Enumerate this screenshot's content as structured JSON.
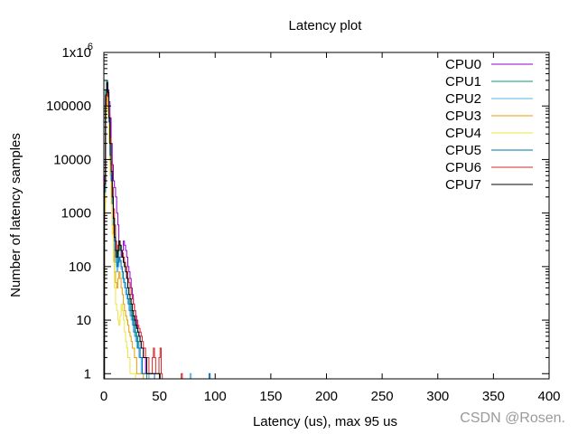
{
  "chart_data": {
    "type": "line",
    "title": "Latency plot",
    "xlabel": "Latency (us), max 95 us",
    "ylabel": "Number of latency samples",
    "xlim": [
      0,
      400
    ],
    "ylim": [
      0.8,
      1000000
    ],
    "yscale": "log",
    "grid": false,
    "legend_position": "top-right",
    "x_ticks": [
      0,
      50,
      100,
      150,
      200,
      250,
      300,
      350,
      400
    ],
    "x_tick_labels": [
      "0",
      "50",
      "100",
      "150",
      "200",
      "250",
      "300",
      "350",
      "400"
    ],
    "y_ticks": [
      1,
      10,
      100,
      1000,
      10000,
      100000,
      1000000
    ],
    "y_tick_labels": [
      "1",
      "10",
      "100",
      "1000",
      "10000",
      "100000",
      "1x10"
    ],
    "y_top_exponent": "6",
    "series": [
      {
        "name": "CPU0",
        "color": "#9400d3",
        "x": [
          1,
          2,
          3,
          4,
          5,
          6,
          7,
          8,
          9,
          10,
          11,
          12,
          13,
          14,
          15,
          16,
          17,
          18,
          19,
          20,
          21,
          22,
          23,
          24,
          25,
          26,
          27,
          28,
          29,
          30,
          31,
          32,
          33,
          34,
          35,
          36,
          37,
          38,
          39,
          40
        ],
        "y": [
          5000,
          150000,
          250000,
          200000,
          120000,
          60000,
          20000,
          8000,
          4000,
          3000,
          2000,
          1000,
          600,
          300,
          200,
          150,
          200,
          300,
          250,
          200,
          150,
          100,
          80,
          60,
          40,
          30,
          20,
          15,
          10,
          8,
          6,
          5,
          4,
          3,
          3,
          2,
          2,
          1,
          1,
          1
        ]
      },
      {
        "name": "CPU1",
        "color": "#009e73",
        "x": [
          1,
          2,
          3,
          4,
          5,
          6,
          7,
          8,
          9,
          10,
          11,
          12,
          13,
          14,
          15,
          16,
          17,
          18,
          19,
          20,
          21,
          22,
          23,
          24,
          25,
          26,
          27,
          28,
          29,
          30,
          31,
          32,
          33,
          34,
          35,
          36,
          37,
          38
        ],
        "y": [
          3000,
          200000,
          300000,
          150000,
          60000,
          15000,
          5000,
          2000,
          800,
          400,
          200,
          150,
          100,
          200,
          250,
          200,
          150,
          120,
          100,
          80,
          60,
          40,
          30,
          20,
          15,
          12,
          10,
          8,
          6,
          5,
          4,
          3,
          2,
          2,
          1,
          1,
          1,
          1
        ]
      },
      {
        "name": "CPU2",
        "color": "#56b4e9",
        "x": [
          1,
          2,
          3,
          4,
          5,
          6,
          7,
          8,
          9,
          10,
          11,
          12,
          13,
          14,
          15,
          16,
          17,
          18,
          19,
          20,
          21,
          22,
          23,
          24,
          25,
          26,
          27,
          28,
          29,
          30,
          31,
          32,
          33,
          34,
          35,
          36,
          37,
          38,
          39,
          40,
          78
        ],
        "y": [
          2000,
          120000,
          220000,
          120000,
          40000,
          10000,
          3000,
          1000,
          400,
          200,
          120,
          80,
          100,
          150,
          120,
          90,
          60,
          50,
          40,
          30,
          25,
          20,
          15,
          12,
          10,
          8,
          6,
          5,
          4,
          3,
          3,
          2,
          2,
          1,
          1,
          1,
          1,
          1,
          1,
          1,
          1
        ]
      },
      {
        "name": "CPU3",
        "color": "#e69f00",
        "x": [
          1,
          2,
          3,
          4,
          5,
          6,
          7,
          8,
          9,
          10,
          11,
          12,
          13,
          14,
          15,
          16,
          17,
          18,
          19,
          20,
          21,
          22,
          23,
          24,
          25,
          26,
          27,
          28,
          29,
          30,
          31,
          32,
          33,
          34,
          35
        ],
        "y": [
          1500,
          90000,
          180000,
          90000,
          30000,
          8000,
          2000,
          600,
          200,
          80,
          50,
          40,
          60,
          80,
          60,
          40,
          30,
          20,
          15,
          12,
          10,
          8,
          6,
          5,
          4,
          3,
          3,
          2,
          2,
          1,
          1,
          1,
          1,
          1,
          1
        ]
      },
      {
        "name": "CPU4",
        "color": "#f0e442",
        "x": [
          1,
          2,
          3,
          4,
          5,
          6,
          7,
          8,
          9,
          10,
          11,
          12,
          13,
          14,
          15,
          16,
          17,
          18,
          19,
          20,
          21,
          22,
          23,
          24,
          25,
          26,
          27,
          28
        ],
        "y": [
          1000,
          60000,
          150000,
          80000,
          20000,
          5000,
          1500,
          400,
          120,
          40,
          20,
          15,
          10,
          8,
          12,
          20,
          15,
          10,
          6,
          4,
          3,
          2,
          2,
          1,
          1,
          1,
          1,
          1
        ]
      },
      {
        "name": "CPU5",
        "color": "#0072b2",
        "x": [
          1,
          2,
          3,
          4,
          5,
          6,
          7,
          8,
          9,
          10,
          11,
          12,
          13,
          14,
          15,
          16,
          17,
          18,
          19,
          20,
          21,
          22,
          23,
          24,
          25,
          26,
          27,
          28,
          29,
          30,
          31,
          32,
          33,
          34,
          35,
          36,
          37,
          38,
          39,
          40,
          41,
          42,
          43,
          44,
          45,
          95
        ],
        "y": [
          2500,
          130000,
          280000,
          160000,
          50000,
          12000,
          4000,
          1500,
          600,
          300,
          150,
          100,
          120,
          150,
          130,
          100,
          80,
          60,
          50,
          40,
          30,
          25,
          20,
          15,
          12,
          10,
          8,
          6,
          5,
          4,
          3,
          3,
          2,
          2,
          1,
          1,
          1,
          1,
          1,
          1,
          1,
          1,
          1,
          1,
          1,
          1
        ]
      },
      {
        "name": "CPU6",
        "color": "#d62728",
        "x": [
          1,
          2,
          3,
          4,
          5,
          6,
          7,
          8,
          9,
          10,
          11,
          12,
          13,
          14,
          15,
          16,
          17,
          18,
          19,
          20,
          21,
          22,
          23,
          24,
          25,
          26,
          27,
          28,
          29,
          30,
          31,
          32,
          33,
          34,
          35,
          36,
          37,
          38,
          39,
          40,
          41,
          42,
          43,
          44,
          45,
          46,
          47,
          48,
          49,
          50,
          51,
          52,
          70
        ],
        "y": [
          4000,
          100000,
          200000,
          150000,
          70000,
          25000,
          9000,
          3000,
          1200,
          600,
          300,
          200,
          250,
          300,
          250,
          200,
          180,
          150,
          120,
          100,
          80,
          60,
          50,
          40,
          30,
          25,
          20,
          15,
          12,
          10,
          8,
          7,
          6,
          5,
          4,
          3,
          3,
          2,
          2,
          2,
          1,
          1,
          1,
          2,
          3,
          2,
          1,
          1,
          1,
          2,
          3,
          1,
          1
        ]
      },
      {
        "name": "CPU7",
        "color": "#000000",
        "x": [
          1,
          2,
          3,
          4,
          5,
          6,
          7,
          8,
          9,
          10,
          11,
          12,
          13,
          14,
          15,
          16,
          17,
          18,
          19,
          20,
          21,
          22,
          23,
          24,
          25,
          26,
          27,
          28,
          29,
          30,
          31,
          32,
          33,
          34,
          35,
          36,
          37,
          38,
          39,
          40,
          41,
          42,
          43,
          44,
          45,
          46,
          47,
          48,
          49,
          50
        ],
        "y": [
          3500,
          160000,
          270000,
          180000,
          60000,
          20000,
          6000,
          2000,
          800,
          350,
          200,
          150,
          200,
          300,
          250,
          200,
          150,
          120,
          100,
          80,
          60,
          40,
          30,
          25,
          20,
          15,
          12,
          10,
          8,
          7,
          6,
          5,
          4,
          3,
          3,
          2,
          2,
          2,
          1,
          1,
          1,
          1,
          1,
          1,
          1,
          1,
          1,
          1,
          1,
          1
        ]
      }
    ]
  },
  "watermark": "CSDN @Rosen."
}
